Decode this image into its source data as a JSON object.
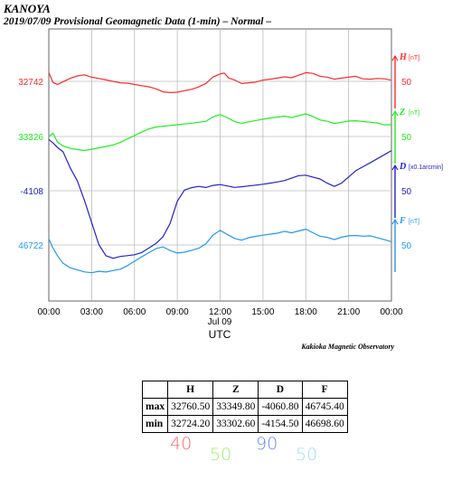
{
  "title": {
    "station": "KANOYA",
    "subtitle": "2019/07/09  Provisional Geomagnetic Data (1-min)  – Normal –"
  },
  "credit": "Kakioka Magnetic Observatory",
  "chart_data": {
    "type": "line",
    "xlabel": "UTC",
    "x_ticks": [
      "00:00",
      "03:00",
      "06:00",
      "09:00",
      "12:00",
      "15:00",
      "18:00",
      "21:00",
      "00:00"
    ],
    "x_date_label": "Jul 09",
    "xlim": [
      0,
      24
    ],
    "grid": true,
    "series": [
      {
        "name": "H",
        "unit": "[nT]",
        "color": "#ff2a2a",
        "left_label": "32742",
        "scale_label": "50",
        "points": [
          [
            0,
            8
          ],
          [
            0.3,
            -2
          ],
          [
            0.6,
            -3
          ],
          [
            1,
            -1
          ],
          [
            1.5,
            2
          ],
          [
            2,
            4
          ],
          [
            2.5,
            5
          ],
          [
            3,
            3
          ],
          [
            3.5,
            2
          ],
          [
            4,
            1
          ],
          [
            4.5,
            0
          ],
          [
            5,
            -1
          ],
          [
            5.5,
            -1
          ],
          [
            6,
            -2
          ],
          [
            6.5,
            -3
          ],
          [
            7,
            -4
          ],
          [
            7.5,
            -6
          ],
          [
            8,
            -9
          ],
          [
            8.5,
            -10
          ],
          [
            9,
            -10
          ],
          [
            9.5,
            -9
          ],
          [
            10,
            -8
          ],
          [
            10.5,
            -6
          ],
          [
            11,
            -3
          ],
          [
            11.5,
            3
          ],
          [
            12,
            6
          ],
          [
            12.3,
            8
          ],
          [
            12.6,
            4
          ],
          [
            13,
            1
          ],
          [
            13.5,
            -2
          ],
          [
            14,
            -1
          ],
          [
            14.5,
            0
          ],
          [
            15,
            2
          ],
          [
            15.5,
            3
          ],
          [
            16,
            4
          ],
          [
            16.5,
            5
          ],
          [
            17,
            4
          ],
          [
            17.5,
            6
          ],
          [
            18,
            8
          ],
          [
            18.5,
            7
          ],
          [
            19,
            4
          ],
          [
            19.5,
            3
          ],
          [
            20,
            1
          ],
          [
            20.5,
            2
          ],
          [
            21,
            3
          ],
          [
            21.5,
            4
          ],
          [
            22,
            2
          ],
          [
            22.5,
            2
          ],
          [
            23,
            3
          ],
          [
            23.5,
            3
          ],
          [
            24,
            2
          ]
        ]
      },
      {
        "name": "Z",
        "unit": "[nT]",
        "color": "#22ee22",
        "left_label": "33326",
        "scale_label": "50",
        "points": [
          [
            0,
            0
          ],
          [
            0.3,
            4
          ],
          [
            0.6,
            -5
          ],
          [
            1,
            -8
          ],
          [
            1.5,
            -10
          ],
          [
            2,
            -11
          ],
          [
            2.5,
            -12
          ],
          [
            3,
            -11
          ],
          [
            3.5,
            -10
          ],
          [
            4,
            -9
          ],
          [
            4.5,
            -8
          ],
          [
            5,
            -6
          ],
          [
            5.5,
            -3
          ],
          [
            6,
            0
          ],
          [
            6.5,
            3
          ],
          [
            7,
            6
          ],
          [
            7.5,
            8
          ],
          [
            8,
            9
          ],
          [
            8.5,
            10
          ],
          [
            9,
            11
          ],
          [
            9.5,
            12
          ],
          [
            10,
            13
          ],
          [
            10.5,
            14
          ],
          [
            11,
            15
          ],
          [
            11.5,
            19
          ],
          [
            12,
            21
          ],
          [
            12.5,
            18
          ],
          [
            13,
            14
          ],
          [
            13.5,
            12
          ],
          [
            14,
            13
          ],
          [
            14.5,
            14
          ],
          [
            15,
            15
          ],
          [
            15.5,
            16
          ],
          [
            16,
            17
          ],
          [
            16.5,
            18
          ],
          [
            17,
            17
          ],
          [
            17.5,
            19
          ],
          [
            18,
            21
          ],
          [
            18.5,
            19
          ],
          [
            19,
            16
          ],
          [
            19.5,
            15
          ],
          [
            20,
            13
          ],
          [
            20.5,
            14
          ],
          [
            21,
            15
          ],
          [
            21.5,
            15
          ],
          [
            22,
            14
          ],
          [
            22.5,
            13
          ],
          [
            23,
            12
          ],
          [
            23.5,
            10
          ],
          [
            24,
            10
          ]
        ]
      },
      {
        "name": "D",
        "unit": "[x0.1arcmin]",
        "color": "#2222cc",
        "left_label": "-4108",
        "scale_label": "50",
        "points": [
          [
            0,
            47
          ],
          [
            0.3,
            43
          ],
          [
            0.6,
            40
          ],
          [
            1,
            35
          ],
          [
            1.5,
            20
          ],
          [
            2,
            8
          ],
          [
            2.5,
            -10
          ],
          [
            3,
            -30
          ],
          [
            3.5,
            -50
          ],
          [
            4,
            -60
          ],
          [
            4.5,
            -62
          ],
          [
            5,
            -60
          ],
          [
            5.5,
            -59
          ],
          [
            6,
            -58
          ],
          [
            6.5,
            -56
          ],
          [
            7,
            -52
          ],
          [
            7.5,
            -48
          ],
          [
            8,
            -42
          ],
          [
            8.5,
            -30
          ],
          [
            9,
            -10
          ],
          [
            9.5,
            0
          ],
          [
            10,
            2
          ],
          [
            10.5,
            3
          ],
          [
            11,
            2
          ],
          [
            11.5,
            4
          ],
          [
            12,
            5
          ],
          [
            12.5,
            4
          ],
          [
            13,
            3
          ],
          [
            13.5,
            4
          ],
          [
            14,
            5
          ],
          [
            14.5,
            6
          ],
          [
            15,
            7
          ],
          [
            15.5,
            8
          ],
          [
            16,
            9
          ],
          [
            16.5,
            10
          ],
          [
            17,
            12
          ],
          [
            17.5,
            14
          ],
          [
            18,
            14
          ],
          [
            18.5,
            12
          ],
          [
            19,
            10
          ],
          [
            19.5,
            6
          ],
          [
            20,
            3
          ],
          [
            20.5,
            6
          ],
          [
            21,
            12
          ],
          [
            21.5,
            18
          ],
          [
            22,
            22
          ],
          [
            22.5,
            26
          ],
          [
            23,
            30
          ],
          [
            23.5,
            34
          ],
          [
            24,
            38
          ]
        ]
      },
      {
        "name": "F",
        "unit": "[nT]",
        "color": "#2299ee",
        "left_label": "46722",
        "scale_label": "50",
        "points": [
          [
            0,
            6
          ],
          [
            0.3,
            -2
          ],
          [
            0.6,
            -10
          ],
          [
            1,
            -16
          ],
          [
            1.5,
            -20
          ],
          [
            2,
            -22
          ],
          [
            2.5,
            -24
          ],
          [
            3,
            -25
          ],
          [
            3.5,
            -24
          ],
          [
            4,
            -25
          ],
          [
            4.5,
            -24
          ],
          [
            5,
            -23
          ],
          [
            5.5,
            -20
          ],
          [
            6,
            -16
          ],
          [
            6.5,
            -12
          ],
          [
            7,
            -8
          ],
          [
            7.5,
            -4
          ],
          [
            8,
            -2
          ],
          [
            8.5,
            -5
          ],
          [
            9,
            -7
          ],
          [
            9.5,
            -6
          ],
          [
            10,
            -4
          ],
          [
            10.5,
            -2
          ],
          [
            11,
            2
          ],
          [
            11.5,
            10
          ],
          [
            12,
            14
          ],
          [
            12.5,
            10
          ],
          [
            13,
            6
          ],
          [
            13.5,
            4
          ],
          [
            14,
            6
          ],
          [
            14.5,
            7
          ],
          [
            15,
            8
          ],
          [
            15.5,
            9
          ],
          [
            16,
            10
          ],
          [
            16.5,
            12
          ],
          [
            17,
            11
          ],
          [
            17.5,
            13
          ],
          [
            18,
            15
          ],
          [
            18.5,
            12
          ],
          [
            19,
            9
          ],
          [
            19.5,
            8
          ],
          [
            20,
            6
          ],
          [
            20.5,
            8
          ],
          [
            21,
            9
          ],
          [
            21.5,
            9
          ],
          [
            22,
            8
          ],
          [
            22.5,
            8
          ],
          [
            23,
            6
          ],
          [
            23.5,
            4
          ],
          [
            24,
            2
          ]
        ]
      }
    ]
  },
  "stats_table": {
    "headers": [
      "",
      "H",
      "Z",
      "D",
      "F"
    ],
    "rows": [
      [
        "max",
        "32760.50",
        "33349.80",
        "-4060.80",
        "46745.40"
      ],
      [
        "min",
        "32724.20",
        "33302.60",
        "-4154.50",
        "46698.60"
      ]
    ]
  },
  "handwritten": [
    {
      "text": "40",
      "color": "#ff6666"
    },
    {
      "text": "50",
      "color": "#99ee66"
    },
    {
      "text": "90",
      "color": "#6688ee"
    },
    {
      "text": "50",
      "color": "#99ddff"
    }
  ]
}
